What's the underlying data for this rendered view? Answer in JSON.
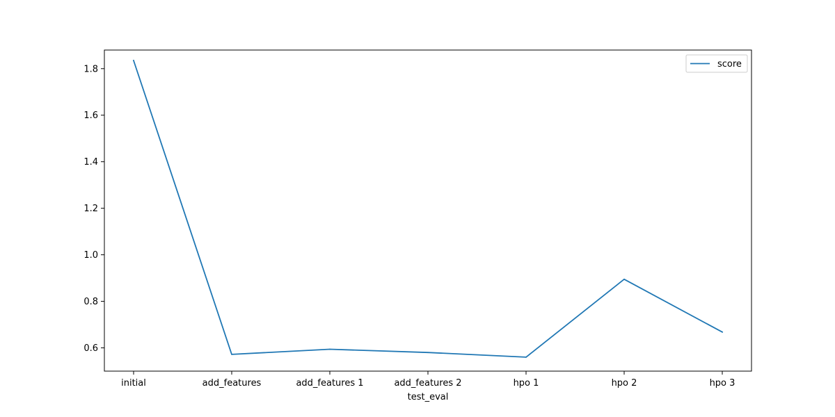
{
  "chart_data": {
    "type": "line",
    "title": "",
    "xlabel": "test_eval",
    "ylabel": "",
    "categories": [
      "initial",
      "add_features",
      "add_features 1",
      "add_features 2",
      "hpo 1",
      "hpo 2",
      "hpo 3"
    ],
    "series": [
      {
        "name": "score",
        "values": [
          1.835,
          0.572,
          0.594,
          0.58,
          0.56,
          0.895,
          0.668
        ],
        "color": "#1f77b4"
      }
    ],
    "ylim": [
      0.5,
      1.88
    ],
    "yticks": [
      "0.6",
      "0.8",
      "1.0",
      "1.2",
      "1.4",
      "1.6",
      "1.8"
    ],
    "grid": false,
    "legend_position": "top-right"
  }
}
